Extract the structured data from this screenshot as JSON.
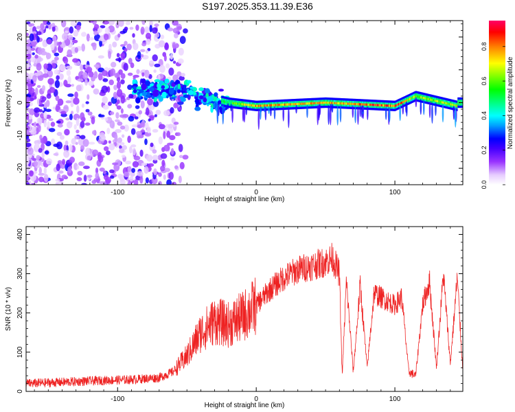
{
  "title": "S197.2025.353.11.39.E36",
  "chart_data": [
    {
      "type": "heatmap",
      "id": "spectrogram",
      "xlabel": "Height of straight line (km)",
      "ylabel": "Frequency (Hz)",
      "xlim": [
        -166,
        149
      ],
      "ylim": [
        -25,
        25
      ],
      "xticks": [
        -100,
        0,
        100
      ],
      "yticks": [
        -20,
        -10,
        0,
        10,
        20
      ],
      "colorbar": {
        "label": "Normalized spectral amplitude",
        "range": [
          0.0,
          0.95
        ],
        "ticks": [
          0.0,
          0.2,
          0.4,
          0.6,
          0.8
        ],
        "colormap": [
          "#ffffff",
          "#e6ccff",
          "#9933ff",
          "#4400ff",
          "#0000ff",
          "#00a0ff",
          "#00ffff",
          "#00ff80",
          "#00ff00",
          "#80ff00",
          "#ffff00",
          "#ff8000",
          "#ff0000",
          "#ff0066"
        ]
      },
      "description_points": [
        {
          "height_km": -150,
          "freq_hz": 0,
          "amp": 0.15
        },
        {
          "height_km": -60,
          "freq_hz": 4,
          "amp": 0.35
        },
        {
          "height_km": -40,
          "freq_hz": 2,
          "amp": 0.45
        },
        {
          "height_km": -20,
          "freq_hz": 0,
          "amp": 0.6
        },
        {
          "height_km": 0,
          "freq_hz": -1,
          "amp": 0.85
        },
        {
          "height_km": 50,
          "freq_hz": 0,
          "amp": 0.8
        },
        {
          "height_km": 100,
          "freq_hz": -1,
          "amp": 0.9
        },
        {
          "height_km": 115,
          "freq_hz": 2,
          "amp": 0.7
        },
        {
          "height_km": 145,
          "freq_hz": -1,
          "amp": 0.75
        }
      ]
    },
    {
      "type": "line",
      "id": "snr",
      "xlabel": "Height of straight line (km)",
      "ylabel": "SNR (10 * v/v)",
      "xlim": [
        -166,
        149
      ],
      "ylim": [
        0,
        420
      ],
      "xticks": [
        -100,
        0,
        100
      ],
      "yticks": [
        0,
        100,
        200,
        300,
        400
      ],
      "color": "#ee2222",
      "series": [
        {
          "name": "SNR",
          "x": [
            -166,
            -150,
            -130,
            -110,
            -90,
            -70,
            -60,
            -50,
            -40,
            -30,
            -20,
            -10,
            0,
            10,
            20,
            30,
            40,
            50,
            55,
            60,
            62,
            65,
            70,
            75,
            80,
            85,
            90,
            95,
            100,
            105,
            110,
            115,
            120,
            125,
            130,
            135,
            140,
            145,
            149
          ],
          "y": [
            20,
            22,
            25,
            28,
            30,
            35,
            50,
            90,
            150,
            180,
            170,
            190,
            220,
            260,
            290,
            310,
            320,
            330,
            340,
            300,
            40,
            280,
            50,
            270,
            60,
            250,
            240,
            230,
            220,
            240,
            50,
            40,
            220,
            280,
            60,
            300,
            70,
            290,
            50
          ]
        }
      ]
    }
  ]
}
